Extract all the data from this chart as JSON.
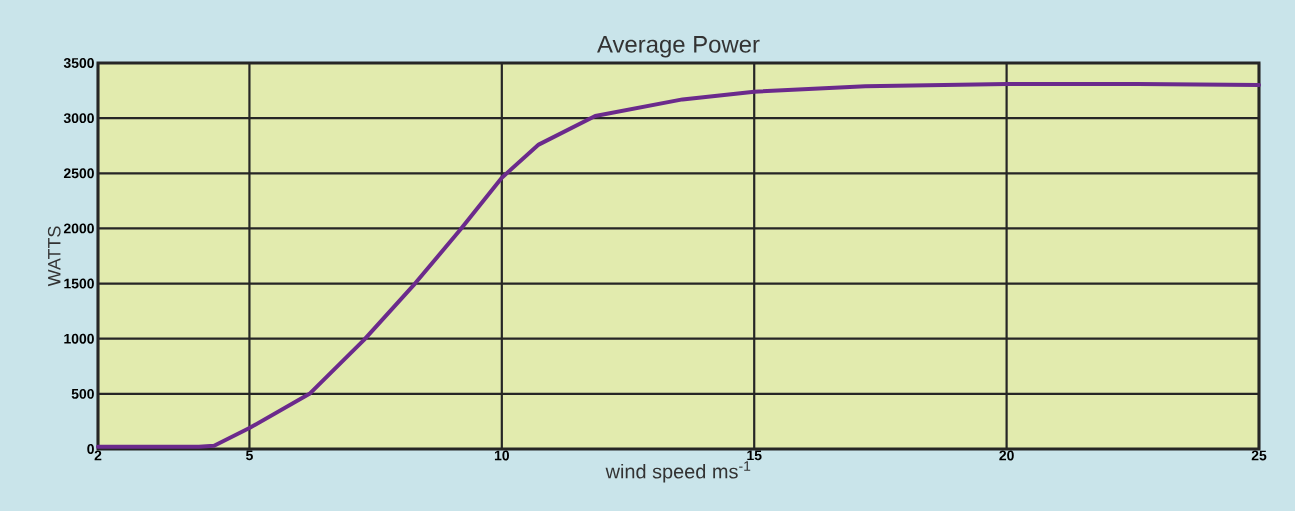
{
  "chart_data": {
    "type": "line",
    "title": "Average Power",
    "xlabel": "wind speed ms$^{-1}$",
    "ylabel": "WATTS",
    "x": [
      2,
      3,
      4,
      4.3,
      5,
      6.19,
      7.27,
      8.28,
      9.18,
      10,
      10.73,
      11.85,
      13.58,
      15,
      17.2,
      20,
      22.6,
      25
    ],
    "series": [
      {
        "color": "#6b2a8c",
        "values": [
          20,
          20,
          20,
          30,
          190,
          500,
          990,
          1500,
          1990,
          2460,
          2760,
          3020,
          3170,
          3240,
          3290,
          3310,
          3310,
          3300
        ]
      }
    ],
    "xlim": [
      2,
      25
    ],
    "xticks": [
      2,
      5,
      10,
      15,
      20,
      25
    ],
    "ylim": [
      0,
      3500
    ],
    "yticks": [
      0,
      500,
      1000,
      1500,
      2000,
      2500,
      3000,
      3500
    ],
    "grid": true,
    "marker": "none",
    "line_style": "solid"
  }
}
